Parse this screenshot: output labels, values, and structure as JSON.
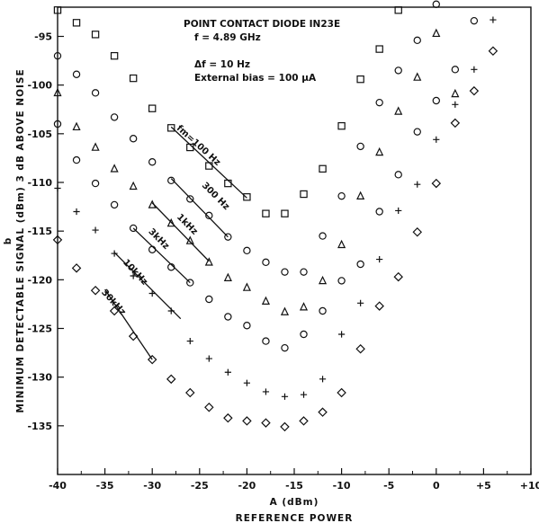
{
  "chart_data": {
    "type": "scatter",
    "title": "POINT CONTACT DIODE IN23E",
    "annotations": {
      "frequency": "f = 4.89 GHz",
      "bandwidth": "Δf = 10 Hz",
      "bias": "External bias = 100 μA"
    },
    "xlabel": "A (dBm)",
    "xlabel_sub": "REFERENCE POWER",
    "ylabel": "MINIMUM DETECTABLE SIGNAL (dBm) 3 dB ABOVE NOISE",
    "ylabel_letter": "b",
    "xlim": [
      -40,
      10
    ],
    "ylim": [
      -140,
      -92
    ],
    "x_ticks": [
      -40,
      -35,
      -30,
      -25,
      -20,
      -15,
      -10,
      -5,
      0,
      5,
      10
    ],
    "x_tick_labels": [
      "-40",
      "-35",
      "-30",
      "-25",
      "-20",
      "-15",
      "-10",
      "-5",
      "0",
      "+5",
      "+10"
    ],
    "y_ticks": [
      -95,
      -100,
      -105,
      -110,
      -115,
      -120,
      -125,
      -130,
      -135
    ],
    "y_tick_labels": [
      "-95",
      "-100",
      "-105",
      "-110",
      "-115",
      "-120",
      "-125",
      "-130",
      "-135"
    ],
    "grid": false,
    "series": [
      {
        "name": "fm=100 Hz",
        "marker": "square",
        "label": {
          "text": "fm=100 Hz",
          "x": -25.3,
          "y": -106.4,
          "angle": 42
        },
        "fit": [
          -28,
          -104.3,
          -20,
          -111.6
        ],
        "points": [
          [
            -40,
            -92.3
          ],
          [
            -38,
            -93.6
          ],
          [
            -36,
            -94.8
          ],
          [
            -34,
            -97.0
          ],
          [
            -32,
            -99.3
          ],
          [
            -30,
            -102.4
          ],
          [
            -28,
            -104.4
          ],
          [
            -26,
            -106.4
          ],
          [
            -24,
            -108.3
          ],
          [
            -22,
            -110.1
          ],
          [
            -20,
            -111.5
          ],
          [
            -18,
            -113.2
          ],
          [
            -16,
            -113.2
          ],
          [
            -14,
            -111.2
          ],
          [
            -12,
            -108.6
          ],
          [
            -10,
            -104.2
          ],
          [
            -8,
            -99.4
          ],
          [
            -6,
            -96.3
          ],
          [
            -4,
            -92.3
          ]
        ]
      },
      {
        "name": "300 Hz",
        "marker": "circle",
        "label": {
          "text": "300 Hz",
          "x": -23.5,
          "y": -111.6,
          "angle": 45
        },
        "fit": [
          -28,
          -109.6,
          -22,
          -115.6
        ],
        "points": [
          [
            -40,
            -97.0
          ],
          [
            -38,
            -98.9
          ],
          [
            -36,
            -100.8
          ],
          [
            -34,
            -103.3
          ],
          [
            -32,
            -105.5
          ],
          [
            -30,
            -107.9
          ],
          [
            -28,
            -109.8
          ],
          [
            -26,
            -111.7
          ],
          [
            -24,
            -113.4
          ],
          [
            -22,
            -115.6
          ],
          [
            -20,
            -117.0
          ],
          [
            -18,
            -118.2
          ],
          [
            -16,
            -119.2
          ],
          [
            -14,
            -119.2
          ],
          [
            -12,
            -115.5
          ],
          [
            -10,
            -111.4
          ],
          [
            -8,
            -106.3
          ],
          [
            -6,
            -101.8
          ],
          [
            -4,
            -98.5
          ],
          [
            -2,
            -95.4
          ],
          [
            0,
            -91.7
          ],
          [
            2,
            -98.4
          ],
          [
            4,
            -93.4
          ]
        ]
      },
      {
        "name": "1kHz",
        "marker": "triangle",
        "label": {
          "text": "1kHz",
          "x": -26.5,
          "y": -114.5,
          "angle": 45
        },
        "fit": [
          -30,
          -112.1,
          -24,
          -118.1
        ],
        "points": [
          [
            -40,
            -100.8
          ],
          [
            -38,
            -104.3
          ],
          [
            -36,
            -106.4
          ],
          [
            -34,
            -108.6
          ],
          [
            -32,
            -110.4
          ],
          [
            -30,
            -112.3
          ],
          [
            -28,
            -114.2
          ],
          [
            -26,
            -116.0
          ],
          [
            -24,
            -118.2
          ],
          [
            -22,
            -119.8
          ],
          [
            -20,
            -120.8
          ],
          [
            -18,
            -122.2
          ],
          [
            -16,
            -123.3
          ],
          [
            -14,
            -122.8
          ],
          [
            -12,
            -120.1
          ],
          [
            -10,
            -116.4
          ],
          [
            -8,
            -111.4
          ],
          [
            -6,
            -106.9
          ],
          [
            -4,
            -102.7
          ],
          [
            -2,
            -99.2
          ],
          [
            0,
            -94.7
          ],
          [
            2,
            -100.9
          ]
        ]
      },
      {
        "name": "3kHz",
        "marker": "circle",
        "label": {
          "text": "3kHz",
          "x": -29.5,
          "y": -116.0,
          "angle": 45
        },
        "fit": [
          -32,
          -114.7,
          -26,
          -120.3
        ],
        "points": [
          [
            -40,
            -104.0
          ],
          [
            -38,
            -107.7
          ],
          [
            -36,
            -110.1
          ],
          [
            -34,
            -112.3
          ],
          [
            -32,
            -114.7
          ],
          [
            -30,
            -116.9
          ],
          [
            -28,
            -118.7
          ],
          [
            -26,
            -120.3
          ],
          [
            -24,
            -122.0
          ],
          [
            -22,
            -123.8
          ],
          [
            -20,
            -124.7
          ],
          [
            -18,
            -126.3
          ],
          [
            -16,
            -127.0
          ],
          [
            -14,
            -125.6
          ],
          [
            -12,
            -123.2
          ],
          [
            -10,
            -120.1
          ],
          [
            -8,
            -118.4
          ],
          [
            -6,
            -113.0
          ],
          [
            -4,
            -109.2
          ],
          [
            -2,
            -104.8
          ],
          [
            0,
            -101.6
          ]
        ]
      },
      {
        "name": "10kHz",
        "marker": "plus",
        "label": {
          "text": "10kHz",
          "x": -32.0,
          "y": -119.4,
          "angle": 47
        },
        "fit": [
          -34,
          -117.2,
          -27,
          -124.0
        ],
        "points": [
          [
            -40,
            -110.6
          ],
          [
            -38,
            -113.0
          ],
          [
            -36,
            -114.9
          ],
          [
            -34,
            -117.3
          ],
          [
            -32,
            -119.6
          ],
          [
            -30,
            -121.4
          ],
          [
            -28,
            -123.2
          ],
          [
            -26,
            -126.3
          ],
          [
            -24,
            -128.1
          ],
          [
            -22,
            -129.5
          ],
          [
            -20,
            -130.6
          ],
          [
            -18,
            -131.5
          ],
          [
            -16,
            -132.0
          ],
          [
            -14,
            -131.8
          ],
          [
            -12,
            -130.2
          ],
          [
            -10,
            -125.6
          ],
          [
            -8,
            -122.4
          ],
          [
            -6,
            -117.9
          ],
          [
            -4,
            -112.9
          ],
          [
            -2,
            -110.2
          ],
          [
            0,
            -105.6
          ],
          [
            2,
            -102.0
          ],
          [
            4,
            -98.4
          ],
          [
            6,
            -93.3
          ]
        ]
      },
      {
        "name": "30kHz",
        "marker": "diamond",
        "label": {
          "text": "30kHz",
          "x": -34.3,
          "y": -122.5,
          "angle": 48
        },
        "fit": [
          -35,
          -121.0,
          -30,
          -128.2
        ],
        "points": [
          [
            -40,
            -115.9
          ],
          [
            -38,
            -118.8
          ],
          [
            -36,
            -121.1
          ],
          [
            -34,
            -123.2
          ],
          [
            -32,
            -125.8
          ],
          [
            -30,
            -128.2
          ],
          [
            -28,
            -130.2
          ],
          [
            -26,
            -131.6
          ],
          [
            -24,
            -133.1
          ],
          [
            -22,
            -134.2
          ],
          [
            -20,
            -134.5
          ],
          [
            -18,
            -134.7
          ],
          [
            -16,
            -135.1
          ],
          [
            -14,
            -134.5
          ],
          [
            -12,
            -133.6
          ],
          [
            -10,
            -131.6
          ],
          [
            -8,
            -127.1
          ],
          [
            -6,
            -122.7
          ],
          [
            -4,
            -119.7
          ],
          [
            -2,
            -115.1
          ],
          [
            0,
            -110.1
          ],
          [
            2,
            -103.9
          ],
          [
            4,
            -100.6
          ],
          [
            6,
            -96.5
          ]
        ]
      }
    ]
  }
}
